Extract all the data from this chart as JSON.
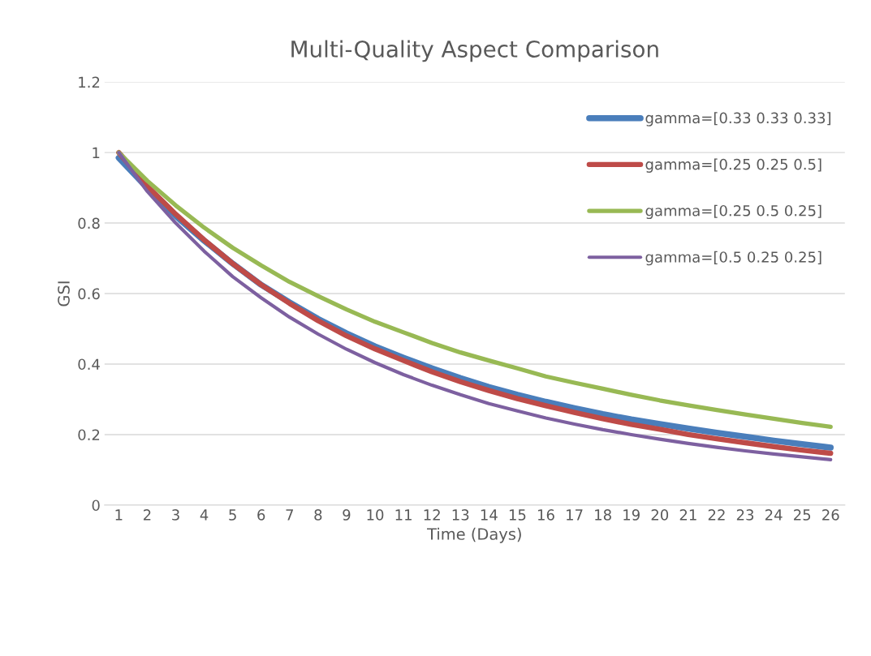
{
  "chart_data": {
    "type": "line",
    "title": "Multi-Quality Aspect Comparison",
    "xlabel": "Time (Days)",
    "ylabel": "GSI",
    "categories": [
      "1",
      "2",
      "3",
      "4",
      "5",
      "6",
      "7",
      "8",
      "9",
      "10",
      "11",
      "12",
      "13",
      "14",
      "15",
      "16",
      "17",
      "18",
      "19",
      "20",
      "21",
      "22",
      "23",
      "24",
      "25",
      "26"
    ],
    "series": [
      {
        "name": "gamma=[0.33 0.33 0.33]",
        "color": "#4a7ebb",
        "values": [
          0.985,
          0.9,
          0.82,
          0.75,
          0.685,
          0.625,
          0.575,
          0.528,
          0.487,
          0.45,
          0.418,
          0.388,
          0.36,
          0.335,
          0.313,
          0.293,
          0.275,
          0.258,
          0.243,
          0.23,
          0.217,
          0.205,
          0.194,
          0.183,
          0.173,
          0.163
        ]
      },
      {
        "name": "gamma=[0.25 0.25 0.5]",
        "color": "#be4b48",
        "values": [
          1.0,
          0.905,
          0.825,
          0.752,
          0.685,
          0.625,
          0.572,
          0.523,
          0.48,
          0.443,
          0.41,
          0.378,
          0.35,
          0.325,
          0.302,
          0.282,
          0.263,
          0.245,
          0.229,
          0.215,
          0.2,
          0.188,
          0.177,
          0.166,
          0.156,
          0.147
        ]
      },
      {
        "name": "gamma=[0.25 0.5 0.25]",
        "color": "#98b954",
        "values": [
          1.0,
          0.92,
          0.85,
          0.787,
          0.73,
          0.68,
          0.633,
          0.593,
          0.555,
          0.52,
          0.49,
          0.46,
          0.433,
          0.41,
          0.388,
          0.365,
          0.347,
          0.33,
          0.313,
          0.297,
          0.283,
          0.27,
          0.257,
          0.245,
          0.233,
          0.222
        ]
      },
      {
        "name": "gamma=[0.5 0.25 0.25]",
        "color": "#7d60a0",
        "values": [
          1.0,
          0.89,
          0.8,
          0.72,
          0.648,
          0.588,
          0.533,
          0.485,
          0.442,
          0.404,
          0.37,
          0.34,
          0.313,
          0.288,
          0.267,
          0.247,
          0.23,
          0.214,
          0.2,
          0.187,
          0.175,
          0.164,
          0.154,
          0.145,
          0.137,
          0.129
        ]
      }
    ],
    "ylim": [
      0,
      1.2
    ],
    "yticks": [
      0,
      0.2,
      0.4,
      0.6,
      0.8,
      1,
      1.2
    ],
    "grid": "y",
    "legend": "top right",
    "marker": "none",
    "line_style": "solid"
  }
}
